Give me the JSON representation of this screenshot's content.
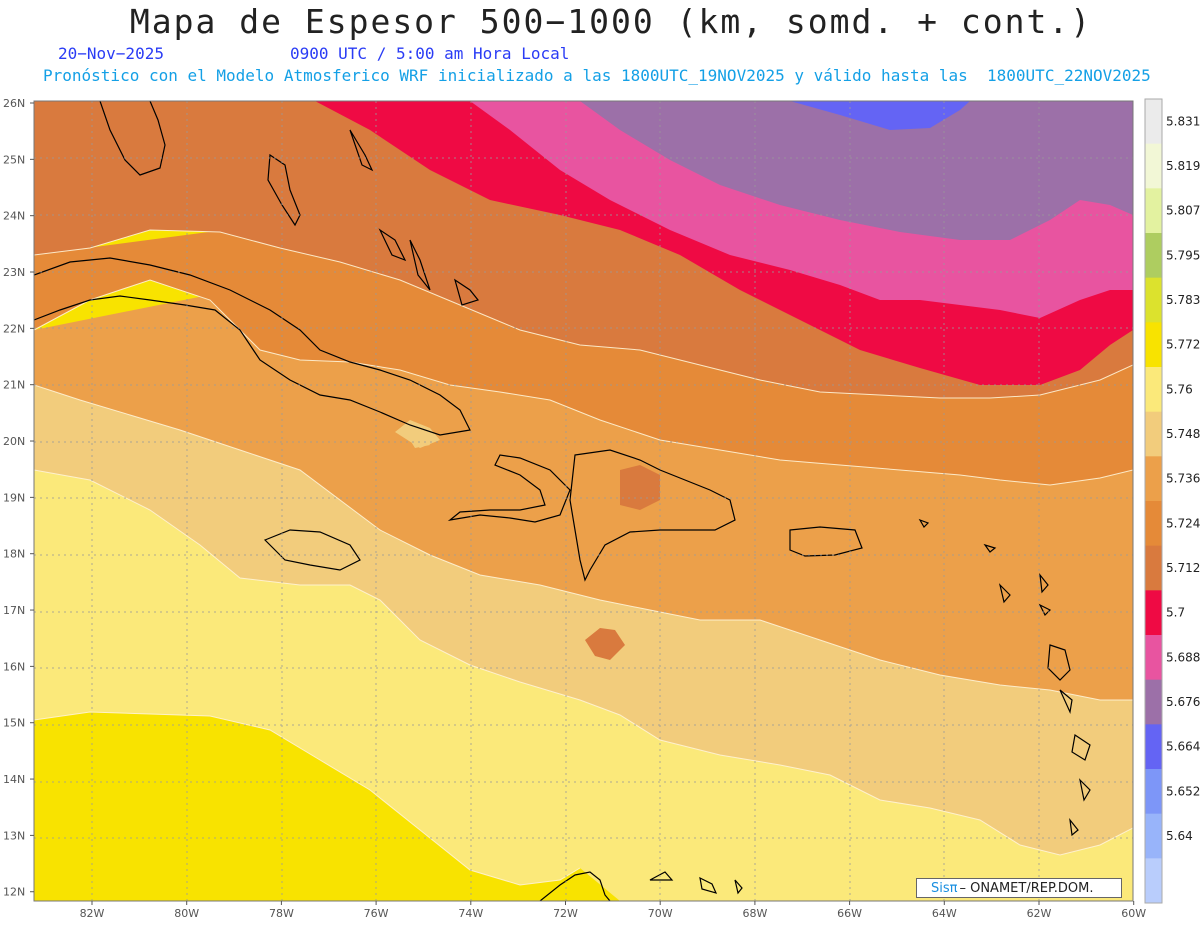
{
  "title": "Mapa de Espesor 500−1000 (km, somd. + cont.)",
  "date": "20−Nov−2025",
  "time": "0900 UTC / 5:00 am Hora Local",
  "forecast_line": "Pronóstico con el Modelo Atmosferico WRF inicializado a las 1800UTC_19NOV2025 y válido hasta las  1800UTC_22NOV2025",
  "credit_brand": "Sisπ",
  "credit_org": "– ONAMET/REP.DOM.",
  "map": {
    "lon_range": [
      -83.2,
      -60
    ],
    "lat_range": [
      11.9,
      26.1
    ],
    "lat_ticks": [
      "26N",
      "25N",
      "24N",
      "23N",
      "22N",
      "21N",
      "20N",
      "19N",
      "18N",
      "17N",
      "16N",
      "15N",
      "14N",
      "13N",
      "12N"
    ],
    "lon_ticks": [
      "82W",
      "80W",
      "78W",
      "76W",
      "74W",
      "72W",
      "70W",
      "68W",
      "66W",
      "64W",
      "62W",
      "60W"
    ],
    "grid": true
  },
  "colorbar": {
    "labels": [
      "5.831",
      "5.819",
      "5.807",
      "5.795",
      "5.783",
      "5.772",
      "5.76",
      "5.748",
      "5.736",
      "5.724",
      "5.712",
      "5.7",
      "5.688",
      "5.676",
      "5.664",
      "5.652",
      "5.64"
    ],
    "colors": [
      "#ebebeb",
      "#f2f7d6",
      "#e3f2a0",
      "#aecd60",
      "#dce22d",
      "#f8e300",
      "#fbe97a",
      "#f2cc7c",
      "#eca04a",
      "#e58a38",
      "#d97a3e",
      "#ef0a44",
      "#e854a0",
      "#9c70a8",
      "#6464f4",
      "#7d96f8",
      "#98b4fa",
      "#b9cdfc"
    ]
  },
  "legend_colors": {
    "thickness_5760": "#fbe97a",
    "thickness_5772": "#f8e300",
    "thickness_5748": "#f2cc7c",
    "thickness_5736": "#eca04a",
    "thickness_5724": "#e58a38",
    "thickness_5712": "#d97a3e",
    "thickness_5700": "#ef0a44",
    "thickness_5688": "#e854a0",
    "thickness_5676": "#9c70a8",
    "thickness_5664": "#6464f4"
  }
}
